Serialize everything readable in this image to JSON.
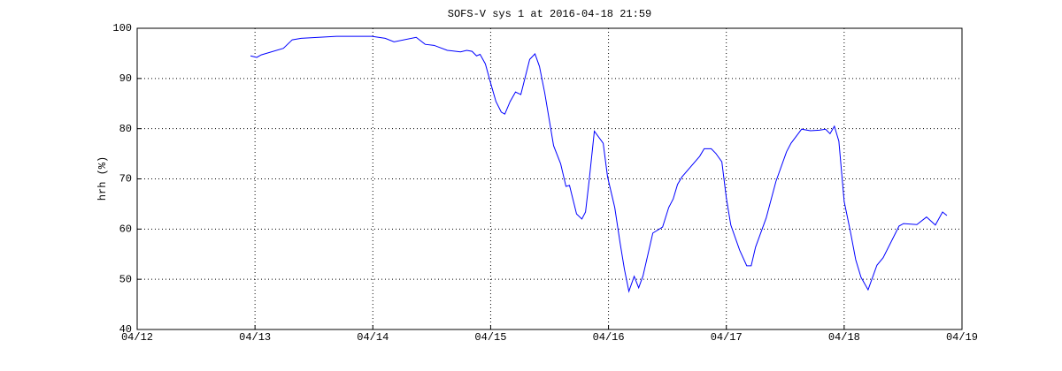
{
  "chart_data": {
    "type": "line",
    "title": "SOFS-V sys 1 at 2016-04-18 21:59",
    "ylabel": "hrh (%)",
    "xlim": [
      0,
      7
    ],
    "xticks": [
      {
        "value": 0,
        "label": "04/12"
      },
      {
        "value": 1,
        "label": "04/13"
      },
      {
        "value": 2,
        "label": "04/14"
      },
      {
        "value": 3,
        "label": "04/15"
      },
      {
        "value": 4,
        "label": "04/16"
      },
      {
        "value": 5,
        "label": "04/17"
      },
      {
        "value": 6,
        "label": "04/18"
      },
      {
        "value": 7,
        "label": "04/19"
      }
    ],
    "ylim": [
      40,
      100
    ],
    "yticks": [
      40,
      50,
      60,
      70,
      80,
      90,
      100
    ],
    "grid": true,
    "x": [
      0.962,
      1.015,
      1.053,
      1.241,
      1.316,
      1.391,
      1.541,
      1.692,
      1.992,
      2.105,
      2.18,
      2.368,
      2.444,
      2.519,
      2.632,
      2.744,
      2.797,
      2.842,
      2.88,
      2.91,
      2.955,
      3.008,
      3.045,
      3.09,
      3.12,
      3.165,
      3.211,
      3.256,
      3.331,
      3.376,
      3.414,
      3.459,
      3.534,
      3.594,
      3.639,
      3.669,
      3.729,
      3.774,
      3.805,
      3.835,
      3.88,
      3.955,
      3.992,
      4.053,
      4.098,
      4.135,
      4.173,
      4.218,
      4.256,
      4.293,
      4.376,
      4.459,
      4.511,
      4.549,
      4.586,
      4.624,
      4.774,
      4.812,
      4.872,
      4.91,
      4.962,
      5.0,
      5.038,
      5.113,
      5.173,
      5.211,
      5.248,
      5.338,
      5.421,
      5.511,
      5.549,
      5.639,
      5.714,
      5.789,
      5.842,
      5.88,
      5.917,
      5.955,
      6.0,
      6.053,
      6.098,
      6.143,
      6.203,
      6.278,
      6.331,
      6.466,
      6.504,
      6.617,
      6.699,
      6.774,
      6.835,
      6.872
    ],
    "series": [
      {
        "name": "hrh",
        "color": "#0000ff",
        "values": [
          94.5,
          94.2,
          94.7,
          96,
          97.7,
          98,
          98.2,
          98.4,
          98.4,
          98,
          97.3,
          98.2,
          96.8,
          96.6,
          95.6,
          95.3,
          95.6,
          95.4,
          94.5,
          94.8,
          92.9,
          88.4,
          85.4,
          83.3,
          82.9,
          85.4,
          87.3,
          86.8,
          93.8,
          94.9,
          92.4,
          87.1,
          76.6,
          73,
          68.5,
          68.7,
          63,
          62,
          63.4,
          69.5,
          79.5,
          77.1,
          70.4,
          64.3,
          57.3,
          52,
          47.6,
          50.6,
          48.3,
          50.7,
          59.2,
          60.4,
          64.3,
          66,
          68.9,
          70.4,
          74.5,
          76,
          76,
          75.1,
          73.4,
          66.2,
          60.8,
          55.8,
          52.7,
          52.7,
          56.4,
          62.2,
          69.5,
          75.4,
          77.1,
          79.9,
          79.6,
          79.7,
          79.9,
          79,
          80.5,
          77.5,
          65.5,
          59.5,
          53.9,
          50.4,
          47.9,
          52.8,
          54.3,
          60.6,
          61.1,
          60.9,
          62.4,
          60.8,
          63.4,
          62.7
        ]
      }
    ]
  }
}
